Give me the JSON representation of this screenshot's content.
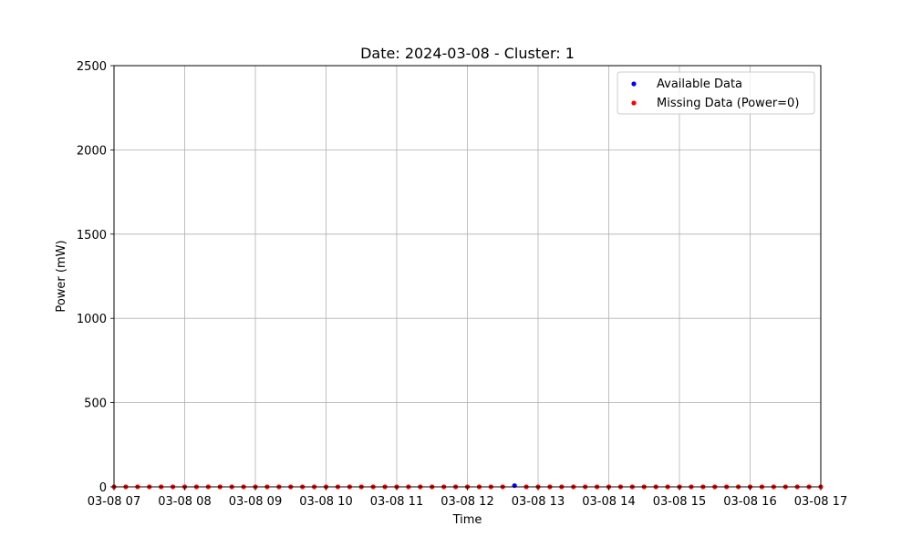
{
  "chart_data": {
    "type": "scatter",
    "title": "Date: 2024-03-08 - Cluster: 1",
    "xlabel": "Time",
    "ylabel": "Power (mW)",
    "x_ticks": [
      "03-08 07",
      "03-08 08",
      "03-08 09",
      "03-08 10",
      "03-08 11",
      "03-08 12",
      "03-08 13",
      "03-08 14",
      "03-08 15",
      "03-08 16",
      "03-08 17"
    ],
    "xlim": [
      "2024-03-08 07:00",
      "2024-03-08 17:00"
    ],
    "ylim": [
      0,
      2500
    ],
    "y_ticks": [
      0,
      500,
      1000,
      1500,
      2000,
      2500
    ],
    "grid": true,
    "legend_position": "top-right",
    "series": [
      {
        "name": "Available Data",
        "color": "#0000ff",
        "points": [
          {
            "x": "2024-03-08 12:40",
            "y": 7
          }
        ]
      },
      {
        "name": "Missing Data (Power=0)",
        "color": "#ff0000",
        "points": [
          {
            "x": "2024-03-08 07:00",
            "y": 0
          },
          {
            "x": "2024-03-08 07:10",
            "y": 0
          },
          {
            "x": "2024-03-08 07:20",
            "y": 0
          },
          {
            "x": "2024-03-08 07:30",
            "y": 0
          },
          {
            "x": "2024-03-08 07:40",
            "y": 0
          },
          {
            "x": "2024-03-08 07:50",
            "y": 0
          },
          {
            "x": "2024-03-08 08:00",
            "y": 0
          },
          {
            "x": "2024-03-08 08:10",
            "y": 0
          },
          {
            "x": "2024-03-08 08:20",
            "y": 0
          },
          {
            "x": "2024-03-08 08:30",
            "y": 0
          },
          {
            "x": "2024-03-08 08:40",
            "y": 0
          },
          {
            "x": "2024-03-08 08:50",
            "y": 0
          },
          {
            "x": "2024-03-08 09:00",
            "y": 0
          },
          {
            "x": "2024-03-08 09:10",
            "y": 0
          },
          {
            "x": "2024-03-08 09:20",
            "y": 0
          },
          {
            "x": "2024-03-08 09:30",
            "y": 0
          },
          {
            "x": "2024-03-08 09:40",
            "y": 0
          },
          {
            "x": "2024-03-08 09:50",
            "y": 0
          },
          {
            "x": "2024-03-08 10:00",
            "y": 0
          },
          {
            "x": "2024-03-08 10:10",
            "y": 0
          },
          {
            "x": "2024-03-08 10:20",
            "y": 0
          },
          {
            "x": "2024-03-08 10:30",
            "y": 0
          },
          {
            "x": "2024-03-08 10:40",
            "y": 0
          },
          {
            "x": "2024-03-08 10:50",
            "y": 0
          },
          {
            "x": "2024-03-08 11:00",
            "y": 0
          },
          {
            "x": "2024-03-08 11:10",
            "y": 0
          },
          {
            "x": "2024-03-08 11:20",
            "y": 0
          },
          {
            "x": "2024-03-08 11:30",
            "y": 0
          },
          {
            "x": "2024-03-08 11:40",
            "y": 0
          },
          {
            "x": "2024-03-08 11:50",
            "y": 0
          },
          {
            "x": "2024-03-08 12:00",
            "y": 0
          },
          {
            "x": "2024-03-08 12:10",
            "y": 0
          },
          {
            "x": "2024-03-08 12:20",
            "y": 0
          },
          {
            "x": "2024-03-08 12:30",
            "y": 0
          },
          {
            "x": "2024-03-08 12:50",
            "y": 0
          },
          {
            "x": "2024-03-08 13:00",
            "y": 0
          },
          {
            "x": "2024-03-08 13:10",
            "y": 0
          },
          {
            "x": "2024-03-08 13:20",
            "y": 0
          },
          {
            "x": "2024-03-08 13:30",
            "y": 0
          },
          {
            "x": "2024-03-08 13:40",
            "y": 0
          },
          {
            "x": "2024-03-08 13:50",
            "y": 0
          },
          {
            "x": "2024-03-08 14:00",
            "y": 0
          },
          {
            "x": "2024-03-08 14:10",
            "y": 0
          },
          {
            "x": "2024-03-08 14:20",
            "y": 0
          },
          {
            "x": "2024-03-08 14:30",
            "y": 0
          },
          {
            "x": "2024-03-08 14:40",
            "y": 0
          },
          {
            "x": "2024-03-08 14:50",
            "y": 0
          },
          {
            "x": "2024-03-08 15:00",
            "y": 0
          },
          {
            "x": "2024-03-08 15:10",
            "y": 0
          },
          {
            "x": "2024-03-08 15:20",
            "y": 0
          },
          {
            "x": "2024-03-08 15:30",
            "y": 0
          },
          {
            "x": "2024-03-08 15:40",
            "y": 0
          },
          {
            "x": "2024-03-08 15:50",
            "y": 0
          },
          {
            "x": "2024-03-08 16:00",
            "y": 0
          },
          {
            "x": "2024-03-08 16:10",
            "y": 0
          },
          {
            "x": "2024-03-08 16:20",
            "y": 0
          },
          {
            "x": "2024-03-08 16:30",
            "y": 0
          },
          {
            "x": "2024-03-08 16:40",
            "y": 0
          },
          {
            "x": "2024-03-08 16:50",
            "y": 0
          },
          {
            "x": "2024-03-08 17:00",
            "y": 0
          }
        ]
      }
    ]
  }
}
